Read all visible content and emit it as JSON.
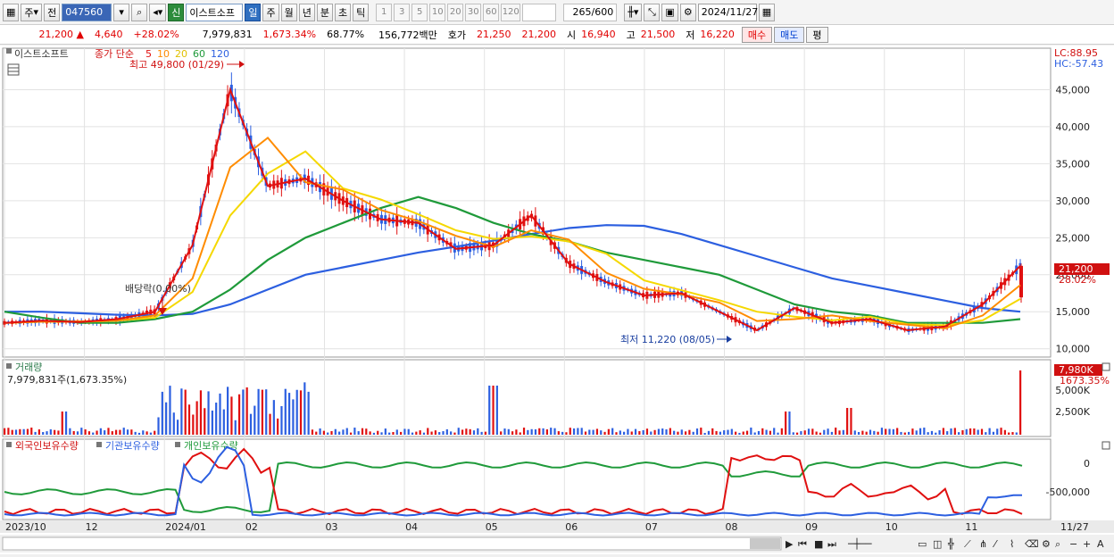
{
  "toolbar": {
    "period_label": "주",
    "prev_label": "전",
    "stock_code": "047560",
    "credit_badge": "신",
    "stock_name": "이스트소프",
    "tabs": [
      "일",
      "주",
      "월",
      "년",
      "분",
      "초",
      "틱"
    ],
    "number_buttons": [
      "1",
      "3",
      "5",
      "10",
      "20",
      "30",
      "60",
      "120"
    ],
    "count_display": "265",
    "count_total": "/600",
    "date": "2024/11/27"
  },
  "quote": {
    "price": "21,200",
    "change": "4,640",
    "change_pct": "+28.02%",
    "volume": "7,979,831",
    "volume_pct": "1,673.34%",
    "turnover_pct": "68.77%",
    "amount": "156,772백만",
    "hoga_label": "호가",
    "ask": "21,250",
    "bid": "21,200",
    "open_label": "시",
    "open": "16,940",
    "high_label": "고",
    "high": "21,500",
    "low_label": "저",
    "low": "16,220",
    "buy_label": "매수",
    "sell_label": "매도",
    "eval_label": "평"
  },
  "price_panel": {
    "title": "이스트소프트",
    "legend_prefix": "종가 단순",
    "ma_labels": [
      "5",
      "10",
      "20",
      "60",
      "120"
    ],
    "ma_colors": [
      "#e01010",
      "#ff8c00",
      "#f5d800",
      "#1f9a3a",
      "#2c5fe0"
    ],
    "lc": "LC:88.95",
    "hc": "HC:-57.43",
    "max_annotation": "최고 49,800 (01/29)",
    "min_annotation": "최저 11,220 (08/05)",
    "dividend_annotation": "배당락(0.00%)",
    "last_price_tag": "21,200",
    "last_pct_tag": "28.02%",
    "y_ticks": [
      "45,000",
      "40,000",
      "35,000",
      "30,000",
      "25,000",
      "20,000",
      "15,000",
      "10,000"
    ]
  },
  "volume_panel": {
    "title": "거래량",
    "info": "7,979,831주(1,673.35%)",
    "tag_value": "7,980K",
    "tag_pct": "1673.35%",
    "y_ticks": [
      "5,000K",
      "2,500K"
    ]
  },
  "holding_panel": {
    "titles": [
      "외국인보유수량",
      "기관보유수량",
      "개인보유수량"
    ],
    "colors": [
      "#e01010",
      "#2c5fe0",
      "#1f9a3a"
    ],
    "y_ticks": [
      "0",
      "-500,000"
    ]
  },
  "x_axis": {
    "labels": [
      "2023/10",
      "12",
      "2024/01",
      "02",
      "03",
      "04",
      "05",
      "06",
      "07",
      "08",
      "09",
      "10",
      "11",
      "11/27"
    ]
  },
  "chart_data": {
    "type": "line",
    "title": "이스트소프트",
    "ylim": [
      9000,
      50000
    ],
    "x": [
      "2023/10",
      "2023/11",
      "2023/12",
      "2024/01a",
      "2024/01b",
      "2024/01c",
      "2024/01d",
      "2024/02a",
      "2024/02b",
      "2024/03a",
      "2024/03b",
      "2024/04a",
      "2024/04b",
      "2024/05a",
      "2024/05b",
      "2024/06a",
      "2024/06b",
      "2024/07a",
      "2024/07b",
      "2024/08a",
      "2024/08b",
      "2024/09a",
      "2024/09b",
      "2024/10a",
      "2024/10b",
      "2024/11a",
      "2024/11b",
      "2024/11/27"
    ],
    "series": [
      {
        "name": "5",
        "values": [
          13500,
          13800,
          13600,
          14000,
          15000,
          24000,
          45000,
          32000,
          33000,
          30000,
          27500,
          27000,
          23500,
          24000,
          28000,
          21500,
          19000,
          17200,
          17500,
          15000,
          12500,
          15500,
          13500,
          14000,
          12500,
          13000,
          16000,
          21200
        ]
      },
      {
        "name": "60",
        "values": [
          15000,
          14200,
          13500,
          13500,
          14000,
          15000,
          18000,
          22000,
          25000,
          27000,
          29000,
          30500,
          29000,
          27000,
          25500,
          24500,
          23000,
          22000,
          21000,
          20000,
          18000,
          16000,
          15000,
          14500,
          13500,
          13500,
          13500,
          14000
        ]
      },
      {
        "name": "120",
        "values": [
          15000,
          15000,
          14800,
          14600,
          14500,
          14700,
          16000,
          18000,
          20000,
          21000,
          22000,
          23000,
          23800,
          24600,
          25500,
          26300,
          26700,
          26600,
          25500,
          24000,
          22500,
          21000,
          19500,
          18500,
          17500,
          16500,
          15500,
          15000
        ]
      }
    ]
  }
}
